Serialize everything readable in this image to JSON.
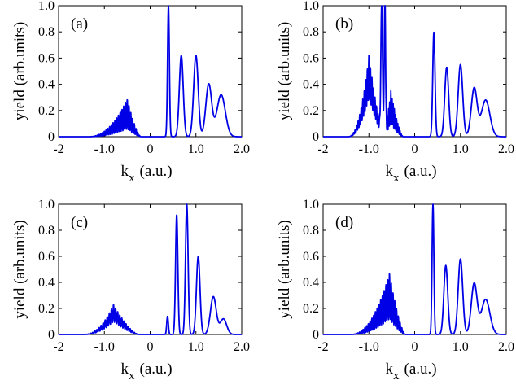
{
  "figure": {
    "line_color": "#0000e6",
    "x_ticks": [
      "-2",
      "-1.0",
      "0",
      "1.0",
      "2.0"
    ],
    "y_ticks": [
      "0",
      "0.2",
      "0.4",
      "0.6",
      "0.8",
      "1.0"
    ],
    "xlabel_main": "k",
    "xlabel_sub": "x",
    "xlabel_units": "(a.u.)",
    "ylabel": "yield (arb.units)"
  },
  "chart_data": [
    {
      "type": "line",
      "panel": "(a)",
      "xlabel": "k x (a.u.)",
      "ylabel": "yield (arb.units)",
      "xlim": [
        -2,
        2
      ],
      "ylim": [
        0,
        1
      ],
      "series": [
        {
          "name": "yield",
          "components": [
            {
              "kind": "envelope_osc",
              "x0": -1.2,
              "x1": -0.35,
              "peak_x": -0.5,
              "peak_y": 0.29,
              "base_y": 0.06,
              "freq": 26
            },
            {
              "kind": "peak",
              "x": 0.4,
              "y": 1.0,
              "width": 0.028
            },
            {
              "kind": "peak",
              "x": 0.68,
              "y": 0.62,
              "width": 0.06
            },
            {
              "kind": "peak",
              "x": 1.0,
              "y": 0.62,
              "width": 0.07
            },
            {
              "kind": "peak",
              "x": 1.28,
              "y": 0.4,
              "width": 0.09
            },
            {
              "kind": "peak",
              "x": 1.55,
              "y": 0.32,
              "width": 0.13
            }
          ]
        }
      ]
    },
    {
      "type": "line",
      "panel": "(b)",
      "xlabel": "k x (a.u.)",
      "ylabel": "yield (arb.units)",
      "xlim": [
        -2,
        2
      ],
      "ylim": [
        0,
        1
      ],
      "series": [
        {
          "name": "yield",
          "components": [
            {
              "kind": "envelope_osc",
              "x0": -1.3,
              "x1": -0.8,
              "peak_x": -1.0,
              "peak_y": 0.62,
              "base_y": 0.3,
              "freq": 30
            },
            {
              "kind": "peak",
              "x": -0.72,
              "y": 0.97,
              "width": 0.025
            },
            {
              "kind": "peak",
              "x": -0.65,
              "y": 1.0,
              "width": 0.02
            },
            {
              "kind": "envelope_osc",
              "x0": -0.62,
              "x1": -0.4,
              "peak_x": -0.52,
              "peak_y": 0.35,
              "base_y": 0.1,
              "freq": 40
            },
            {
              "kind": "peak",
              "x": 0.42,
              "y": 0.8,
              "width": 0.035
            },
            {
              "kind": "peak",
              "x": 0.7,
              "y": 0.53,
              "width": 0.06
            },
            {
              "kind": "peak",
              "x": 1.0,
              "y": 0.55,
              "width": 0.07
            },
            {
              "kind": "peak",
              "x": 1.3,
              "y": 0.37,
              "width": 0.09
            },
            {
              "kind": "peak",
              "x": 1.55,
              "y": 0.28,
              "width": 0.13
            }
          ]
        }
      ]
    },
    {
      "type": "line",
      "panel": "(c)",
      "xlabel": "k x (a.u.)",
      "ylabel": "yield (arb.units)",
      "xlim": [
        -2,
        2
      ],
      "ylim": [
        0,
        1
      ],
      "series": [
        {
          "name": "yield",
          "components": [
            {
              "kind": "envelope_osc",
              "x0": -1.3,
              "x1": -0.4,
              "peak_x": -0.8,
              "peak_y": 0.23,
              "base_y": 0.1,
              "freq": 22
            },
            {
              "kind": "peak",
              "x": 0.38,
              "y": 0.14,
              "width": 0.025
            },
            {
              "kind": "peak",
              "x": 0.58,
              "y": 0.92,
              "width": 0.035
            },
            {
              "kind": "peak",
              "x": 0.8,
              "y": 1.0,
              "width": 0.04
            },
            {
              "kind": "peak",
              "x": 1.05,
              "y": 0.6,
              "width": 0.055
            },
            {
              "kind": "peak",
              "x": 1.38,
              "y": 0.29,
              "width": 0.09
            },
            {
              "kind": "peak",
              "x": 1.6,
              "y": 0.12,
              "width": 0.1
            }
          ]
        }
      ]
    },
    {
      "type": "line",
      "panel": "(d)",
      "xlabel": "k x (a.u.)",
      "ylabel": "yield (arb.units)",
      "xlim": [
        -2,
        2
      ],
      "ylim": [
        0,
        1
      ],
      "series": [
        {
          "name": "yield",
          "components": [
            {
              "kind": "envelope_osc",
              "x0": -1.25,
              "x1": -0.35,
              "peak_x": -0.55,
              "peak_y": 0.47,
              "base_y": 0.12,
              "freq": 26
            },
            {
              "kind": "peak",
              "x": 0.4,
              "y": 1.0,
              "width": 0.028
            },
            {
              "kind": "peak",
              "x": 0.68,
              "y": 0.53,
              "width": 0.06
            },
            {
              "kind": "peak",
              "x": 1.0,
              "y": 0.58,
              "width": 0.07
            },
            {
              "kind": "peak",
              "x": 1.3,
              "y": 0.39,
              "width": 0.09
            },
            {
              "kind": "peak",
              "x": 1.55,
              "y": 0.27,
              "width": 0.13
            }
          ]
        }
      ]
    }
  ]
}
